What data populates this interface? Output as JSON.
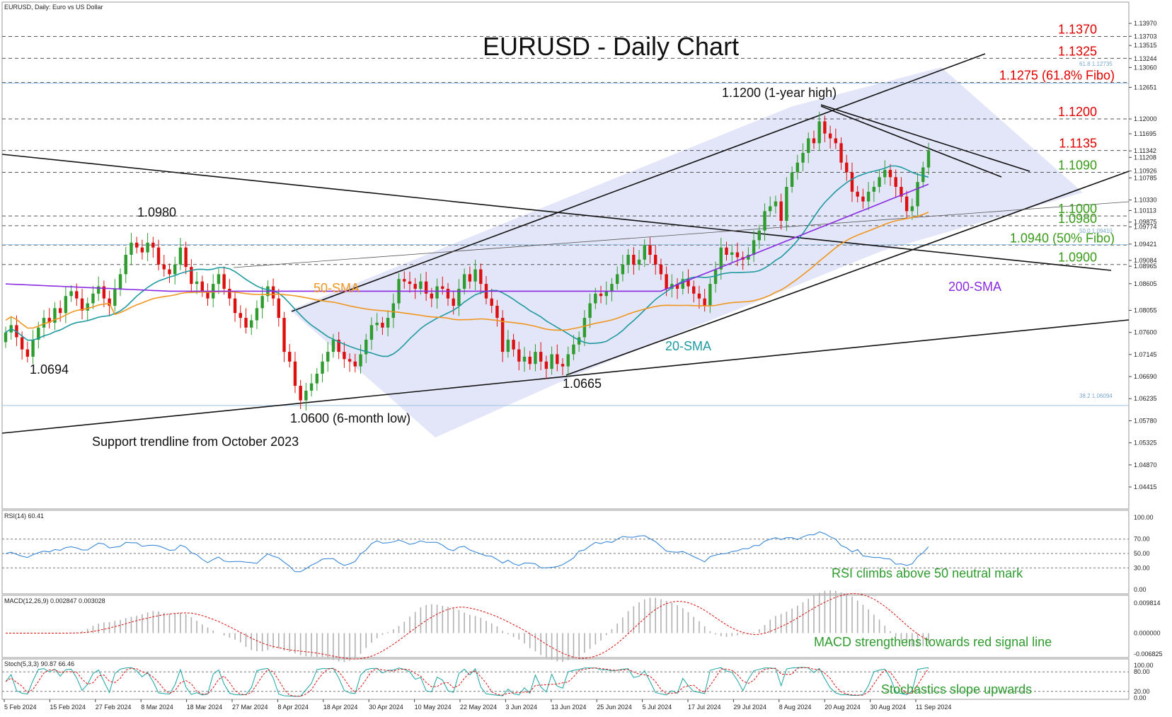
{
  "chart_data": {
    "type": "candlestick",
    "title": "EURUSD - Daily Chart",
    "header": "EURUSD, Daily:  Euro vs US Dollar",
    "x_ticks": [
      "5 Feb 2024",
      "15 Feb 2024",
      "27 Feb 2024",
      "8 Mar 2024",
      "18 Mar 2024",
      "27 Mar 2024",
      "8 Apr 2024",
      "18 Apr 2024",
      "30 Apr 2024",
      "10 May 2024",
      "22 May 2024",
      "3 Jun 2024",
      "13 Jun 2024",
      "25 Jun 2024",
      "5 Jul 2024",
      "17 Jul 2024",
      "29 Jul 2024",
      "8 Aug 2024",
      "20 Aug 2024",
      "30 Aug 2024",
      "11 Sep 2024"
    ],
    "y_ticks": [
      "1.13970",
      "1.13703",
      "1.13515",
      "1.13244",
      "1.13060",
      "1.12651",
      "1.12000",
      "1.11695",
      "1.11342",
      "1.11208",
      "1.10926",
      "1.10785",
      "1.10330",
      "1.10113",
      "1.09875",
      "1.09774",
      "1.09421",
      "1.09084",
      "1.08965",
      "1.08605",
      "1.08055",
      "1.07600",
      "1.07145",
      "1.06690",
      "1.06235",
      "1.05780",
      "1.05325",
      "1.04870",
      "1.04415"
    ],
    "level_labels": [
      {
        "text": "1.1370",
        "price": 1.137,
        "color": "#e00000"
      },
      {
        "text": "1.1325",
        "price": 1.1325,
        "color": "#e00000"
      },
      {
        "text": "1.1275 (61.8% Fibo)",
        "price": 1.1275,
        "color": "#e00000"
      },
      {
        "text": "1.1200",
        "price": 1.12,
        "color": "#e00000"
      },
      {
        "text": "1.1135",
        "price": 1.1135,
        "color": "#e00000"
      },
      {
        "text": "1.1090",
        "price": 1.109,
        "color": "#3a9a1a"
      },
      {
        "text": "1.1000",
        "price": 1.1,
        "color": "#3a9a1a"
      },
      {
        "text": "1.0980",
        "price": 1.098,
        "color": "#3a9a1a"
      },
      {
        "text": "1.0940 (50% Fibo)",
        "price": 1.094,
        "color": "#3a9a1a"
      },
      {
        "text": "1.0900",
        "price": 1.09,
        "color": "#3a9a1a"
      }
    ],
    "annotations": {
      "high_1y": "1.1200 (1-year high)",
      "p1": "1.0980",
      "p2": "1.0694",
      "p3": "1.0665",
      "low_6m": "1.0600 (6-month low)",
      "support": "Support trendline from October 2023",
      "sma50": "50-SMA",
      "sma20": "20-SMA",
      "sma200": "200-SMA",
      "fibo_618": "61.8 1.12735",
      "fibo_50": "50.0 1.09410",
      "fibo_382": "38.2 1.06094"
    },
    "closes": [
      1.076,
      1.0775,
      1.075,
      1.0725,
      1.071,
      1.0745,
      1.077,
      1.079,
      1.078,
      1.081,
      1.08,
      1.0835,
      1.0845,
      1.083,
      1.0805,
      1.082,
      1.084,
      1.0855,
      1.083,
      1.0815,
      1.085,
      1.088,
      1.092,
      1.0945,
      1.0935,
      1.0925,
      1.0945,
      1.0935,
      1.09,
      1.089,
      1.088,
      1.09,
      1.0935,
      1.0895,
      1.086,
      1.0865,
      1.0845,
      1.083,
      1.086,
      1.088,
      1.085,
      1.083,
      1.08,
      1.079,
      1.077,
      1.0785,
      1.081,
      1.0835,
      1.0855,
      1.083,
      1.079,
      1.072,
      1.07,
      1.065,
      1.062,
      1.064,
      1.0655,
      1.0675,
      1.07,
      1.072,
      1.0745,
      1.072,
      1.0705,
      1.07,
      1.069,
      1.0715,
      1.0745,
      1.0775,
      1.078,
      1.077,
      1.079,
      1.082,
      1.087,
      1.0865,
      1.086,
      1.085,
      1.0865,
      1.084,
      1.083,
      1.0855,
      1.085,
      1.083,
      1.0815,
      1.085,
      1.088,
      1.0865,
      1.089,
      1.086,
      1.083,
      1.0815,
      1.079,
      1.072,
      1.0745,
      1.0725,
      1.07,
      1.071,
      1.0695,
      1.072,
      1.07,
      1.0685,
      1.0715,
      1.0695,
      1.069,
      1.0715,
      1.0735,
      1.075,
      1.079,
      1.082,
      1.084,
      1.0835,
      1.0845,
      1.086,
      1.088,
      1.09,
      1.092,
      1.09,
      1.091,
      1.094,
      1.092,
      1.09,
      1.088,
      1.085,
      1.086,
      1.085,
      1.087,
      1.0855,
      1.084,
      1.083,
      1.0815,
      1.086,
      1.089,
      1.0935,
      1.092,
      1.0925,
      1.0915,
      1.091,
      1.092,
      1.095,
      1.097,
      1.101,
      1.102,
      1.103,
      1.099,
      1.106,
      1.109,
      1.111,
      1.113,
      1.116,
      1.115,
      1.1195,
      1.117,
      1.116,
      1.115,
      1.111,
      1.109,
      1.105,
      1.104,
      1.103,
      1.105,
      1.106,
      1.108,
      1.1095,
      1.108,
      1.106,
      1.104,
      1.101,
      1.102,
      1.107,
      1.11,
      1.1135
    ],
    "rsi": {
      "label": "RSI(14) 60.41",
      "ticks": [
        "100.00",
        "70.00",
        "50.00",
        "30.00",
        "0.00"
      ],
      "levels": [
        70,
        50,
        30
      ],
      "annotation": "RSI climbs above 50 neutral mark"
    },
    "macd": {
      "label": "MACD(12,26,9) 0.002847 0.003028",
      "ticks": [
        "0.009814",
        "0.000000",
        "-0.006825"
      ],
      "annotation": "MACD strengthens towards red signal line"
    },
    "stoch": {
      "label": "Stoch(5,3,3) 90.87 66.46",
      "ticks": [
        "100.00",
        "80.00",
        "20.00",
        "0.00"
      ],
      "levels": [
        80,
        20
      ],
      "annotation": "Stochastics slope upwards"
    },
    "colors": {
      "bull": "#2e9c2e",
      "bear": "#dd1010",
      "sma20": "#1e9aa0",
      "sma50": "#f0961e",
      "sma200": "#8a2be2",
      "channel": "#d9dcf5",
      "rsi": "#2a7fd4",
      "signal": "#dd1010",
      "stoch": "#1aa3a3"
    }
  }
}
